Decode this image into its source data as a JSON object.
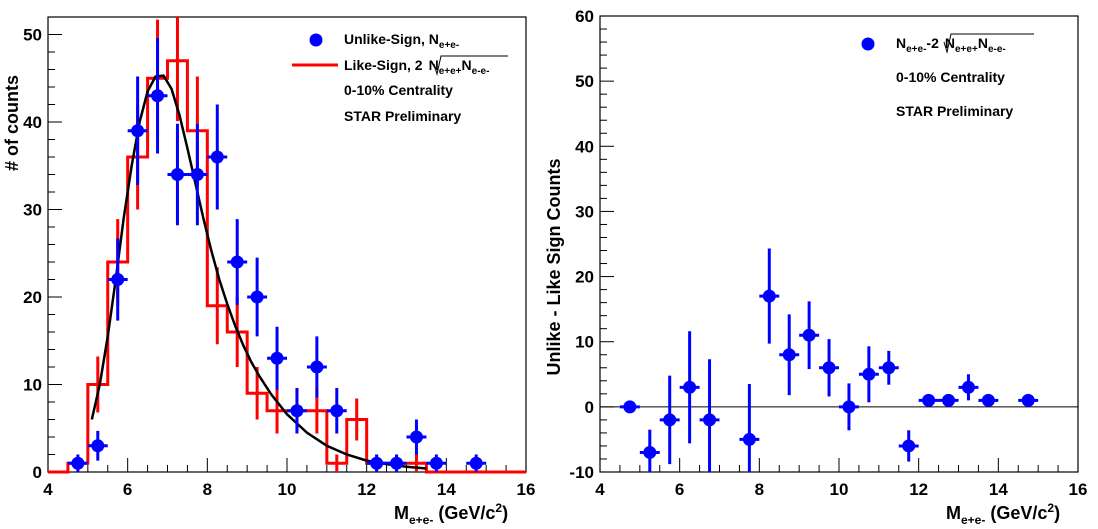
{
  "colors": {
    "unlike": "#0000ff",
    "like": "#ff0000",
    "fit": "#000000",
    "axis": "#000000"
  },
  "chart_data": [
    {
      "type": "scatter",
      "xlabel_main": "M",
      "xlabel_sub": "e+e-",
      "xlabel_unit": "(GeV/c",
      "xlabel_unit_sup": "2",
      "xlabel_unit_end": ")",
      "ylabel": "# of counts",
      "xlim": [
        4,
        16
      ],
      "ylim": [
        0,
        52
      ],
      "xticks": [
        "4",
        "6",
        "8",
        "10",
        "12",
        "14",
        "16"
      ],
      "yticks": [
        "0",
        "10",
        "20",
        "30",
        "40",
        "50"
      ],
      "legend": {
        "unlike_label": "Unlike-Sign, N",
        "unlike_sub": "e+e-",
        "like_label": "Like-Sign, 2",
        "like_sqrt_a": "N",
        "like_sqrt_a_sub": "e+e+",
        "like_sqrt_b": "N",
        "like_sqrt_b_sub": "e-e-",
        "centrality": "0-10% Centrality",
        "star": "STAR Preliminary"
      },
      "unlike_points": [
        {
          "x": 4.75,
          "y": 1,
          "err": 1
        },
        {
          "x": 5.25,
          "y": 3,
          "err": 1.7
        },
        {
          "x": 5.75,
          "y": 22,
          "err": 4.7
        },
        {
          "x": 6.25,
          "y": 39,
          "err": 6.2
        },
        {
          "x": 6.75,
          "y": 43,
          "err": 6.6
        },
        {
          "x": 7.25,
          "y": 34,
          "err": 5.8
        },
        {
          "x": 7.75,
          "y": 34,
          "err": 5.8
        },
        {
          "x": 8.25,
          "y": 36,
          "err": 6.0
        },
        {
          "x": 8.75,
          "y": 24,
          "err": 4.9
        },
        {
          "x": 9.25,
          "y": 20,
          "err": 4.5
        },
        {
          "x": 9.75,
          "y": 13,
          "err": 3.6
        },
        {
          "x": 10.25,
          "y": 7,
          "err": 2.6
        },
        {
          "x": 10.75,
          "y": 12,
          "err": 3.5
        },
        {
          "x": 11.25,
          "y": 7,
          "err": 2.6
        },
        {
          "x": 12.25,
          "y": 1,
          "err": 1
        },
        {
          "x": 12.75,
          "y": 1,
          "err": 1
        },
        {
          "x": 13.25,
          "y": 4,
          "err": 2
        },
        {
          "x": 13.75,
          "y": 1,
          "err": 1
        },
        {
          "x": 14.75,
          "y": 1,
          "err": 1
        }
      ],
      "like_bins": [
        {
          "x": 4.25,
          "y": 0,
          "err": 0
        },
        {
          "x": 4.75,
          "y": 1,
          "err": 0
        },
        {
          "x": 5.25,
          "y": 10,
          "err": 3.2
        },
        {
          "x": 5.75,
          "y": 24,
          "err": 4.9
        },
        {
          "x": 6.25,
          "y": 36,
          "err": 6.0
        },
        {
          "x": 6.75,
          "y": 45,
          "err": 6.7
        },
        {
          "x": 7.25,
          "y": 47,
          "err": 6.9
        },
        {
          "x": 7.75,
          "y": 39,
          "err": 6.2
        },
        {
          "x": 8.25,
          "y": 19,
          "err": 4.4
        },
        {
          "x": 8.75,
          "y": 16,
          "err": 4.0
        },
        {
          "x": 9.25,
          "y": 9,
          "err": 3.0
        },
        {
          "x": 9.75,
          "y": 7,
          "err": 2.6
        },
        {
          "x": 10.25,
          "y": 7,
          "err": 2.6
        },
        {
          "x": 10.75,
          "y": 7,
          "err": 2.6
        },
        {
          "x": 11.25,
          "y": 1,
          "err": 1
        },
        {
          "x": 11.75,
          "y": 6,
          "err": 2.4
        },
        {
          "x": 12.25,
          "y": 1,
          "err": 1
        },
        {
          "x": 12.75,
          "y": 1,
          "err": 1
        },
        {
          "x": 13.25,
          "y": 1,
          "err": 1
        },
        {
          "x": 13.75,
          "y": 0,
          "err": 0
        },
        {
          "x": 14.25,
          "y": 0,
          "err": 0
        },
        {
          "x": 14.75,
          "y": 0,
          "err": 0
        },
        {
          "x": 15.25,
          "y": 0,
          "err": 0
        },
        {
          "x": 15.75,
          "y": 0,
          "err": 0
        }
      ],
      "fit_curve": [
        [
          5.1,
          6
        ],
        [
          5.3,
          10
        ],
        [
          5.5,
          15.5
        ],
        [
          5.7,
          22
        ],
        [
          5.9,
          29
        ],
        [
          6.1,
          35
        ],
        [
          6.3,
          40
        ],
        [
          6.5,
          43.5
        ],
        [
          6.7,
          45.2
        ],
        [
          6.9,
          45.3
        ],
        [
          7.1,
          43.8
        ],
        [
          7.3,
          40.8
        ],
        [
          7.5,
          37
        ],
        [
          7.7,
          33
        ],
        [
          7.9,
          29
        ],
        [
          8.1,
          25.3
        ],
        [
          8.3,
          22
        ],
        [
          8.5,
          19.2
        ],
        [
          8.7,
          16.7
        ],
        [
          8.9,
          14.5
        ],
        [
          9.1,
          12.6
        ],
        [
          9.3,
          11
        ],
        [
          9.6,
          8.9
        ],
        [
          10.0,
          6.6
        ],
        [
          10.5,
          4.5
        ],
        [
          11.0,
          3.0
        ],
        [
          11.5,
          2.0
        ],
        [
          12.0,
          1.3
        ],
        [
          12.5,
          0.9
        ],
        [
          13.0,
          0.6
        ],
        [
          13.5,
          0.4
        ]
      ]
    },
    {
      "type": "scatter",
      "xlabel_main": "M",
      "xlabel_sub": "e+e-",
      "xlabel_unit": "(GeV/c",
      "xlabel_unit_sup": "2",
      "xlabel_unit_end": ")",
      "ylabel": "Unlike - Like Sign Counts",
      "xlim": [
        4,
        16
      ],
      "ylim": [
        -10,
        60
      ],
      "xticks": [
        "4",
        "6",
        "8",
        "10",
        "12",
        "14",
        "16"
      ],
      "yticks": [
        "-10",
        "0",
        "10",
        "20",
        "30",
        "40",
        "50",
        "60"
      ],
      "legend": {
        "label_a": "N",
        "label_a_sub": "e+e-",
        "label_mid": "-2",
        "sqrt_a": "N",
        "sqrt_a_sub": "e+e+",
        "sqrt_b": "N",
        "sqrt_b_sub": "e-e-",
        "centrality": "0-10% Centrality",
        "star": "STAR Preliminary"
      },
      "points": [
        {
          "x": 4.75,
          "y": 0,
          "err": 0.5
        },
        {
          "x": 5.25,
          "y": -7,
          "err": 3.5
        },
        {
          "x": 5.75,
          "y": -2,
          "err": 6.8
        },
        {
          "x": 6.25,
          "y": 3,
          "err": 8.6
        },
        {
          "x": 6.75,
          "y": -2,
          "err": 9.3
        },
        {
          "x": 7.75,
          "y": -5,
          "err": 8.5
        },
        {
          "x": 8.25,
          "y": 17,
          "err": 7.3
        },
        {
          "x": 8.75,
          "y": 8,
          "err": 6.2
        },
        {
          "x": 9.25,
          "y": 11,
          "err": 5.2
        },
        {
          "x": 9.75,
          "y": 6,
          "err": 4.4
        },
        {
          "x": 10.25,
          "y": 0,
          "err": 3.6
        },
        {
          "x": 10.75,
          "y": 5,
          "err": 4.3
        },
        {
          "x": 11.25,
          "y": 6,
          "err": 2.6
        },
        {
          "x": 11.75,
          "y": -6,
          "err": 2.4
        },
        {
          "x": 12.25,
          "y": 1,
          "err": 0.6
        },
        {
          "x": 12.75,
          "y": 1,
          "err": 0.6
        },
        {
          "x": 13.25,
          "y": 3,
          "err": 2
        },
        {
          "x": 13.75,
          "y": 1,
          "err": 0.6
        },
        {
          "x": 14.75,
          "y": 1,
          "err": 0.6
        }
      ],
      "zero_line": 0
    }
  ]
}
